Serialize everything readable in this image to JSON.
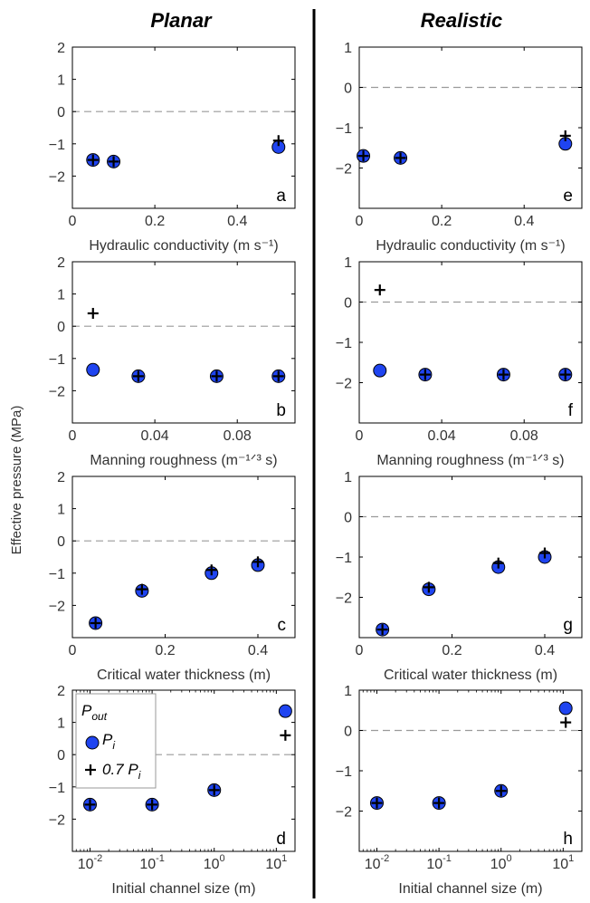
{
  "figure": {
    "column_titles": [
      "Planar",
      "Realistic"
    ],
    "y_axis_label": "Effective pressure (MPa)",
    "colors": {
      "marker_fill": "#1f44f0",
      "marker_edge": "#000000",
      "zero_line": "#9a9a9a",
      "divider": "#000000"
    }
  },
  "legend": {
    "title": "P_out",
    "entries": [
      {
        "symbol": "circle",
        "text": "P_i"
      },
      {
        "symbol": "plus",
        "text": "0.7 P_i"
      }
    ]
  },
  "chart_data": [
    {
      "label": "a",
      "type": "scatter",
      "xlabel": "Hydraulic conductivity (m s⁻¹)",
      "xlim": [
        0,
        0.54
      ],
      "ylim": [
        -3,
        2
      ],
      "xscale": "linear",
      "xticks": [
        0,
        0.2,
        0.4
      ],
      "xticklabels": [
        "0",
        "0.2",
        "0.4"
      ],
      "yticks": [
        2,
        1,
        0,
        -1,
        -2
      ],
      "yticklabels": [
        "2",
        "1",
        "0",
        "−1",
        "−2"
      ],
      "zero_line": true,
      "series": [
        {
          "marker": "circle",
          "x": [
            0.05,
            0.1,
            0.5
          ],
          "y": [
            -1.5,
            -1.55,
            -1.1
          ]
        },
        {
          "marker": "plus",
          "x": [
            0.05,
            0.1,
            0.5
          ],
          "y": [
            -1.5,
            -1.55,
            -0.9
          ]
        }
      ]
    },
    {
      "label": "e",
      "type": "scatter",
      "xlabel": "Hydraulic conductivity (m s⁻¹)",
      "xlim": [
        0,
        0.54
      ],
      "ylim": [
        -3,
        1
      ],
      "xscale": "linear",
      "xticks": [
        0,
        0.2,
        0.4
      ],
      "xticklabels": [
        "0",
        "0.2",
        "0.4"
      ],
      "yticks": [
        1,
        0,
        -1,
        -2
      ],
      "yticklabels": [
        "1",
        "0",
        "−1",
        "−2"
      ],
      "zero_line": true,
      "series": [
        {
          "marker": "circle",
          "x": [
            0.01,
            0.1,
            0.5
          ],
          "y": [
            -1.7,
            -1.75,
            -1.4
          ]
        },
        {
          "marker": "plus",
          "x": [
            0.01,
            0.1,
            0.5
          ],
          "y": [
            -1.7,
            -1.75,
            -1.2
          ]
        }
      ]
    },
    {
      "label": "b",
      "type": "scatter",
      "xlabel": "Manning roughness (m⁻¹ᐟ³ s)",
      "xlim": [
        0,
        0.108
      ],
      "ylim": [
        -3,
        2
      ],
      "xscale": "linear",
      "xticks": [
        0,
        0.04,
        0.08
      ],
      "xticklabels": [
        "0",
        "0.04",
        "0.08"
      ],
      "yticks": [
        2,
        1,
        0,
        -1,
        -2
      ],
      "yticklabels": [
        "2",
        "1",
        "0",
        "−1",
        "−2"
      ],
      "zero_line": true,
      "series": [
        {
          "marker": "circle",
          "x": [
            0.01,
            0.032,
            0.07,
            0.1
          ],
          "y": [
            -1.35,
            -1.55,
            -1.55,
            -1.55
          ]
        },
        {
          "marker": "plus",
          "x": [
            0.01,
            0.032,
            0.07,
            0.1
          ],
          "y": [
            0.4,
            -1.55,
            -1.55,
            -1.55
          ]
        }
      ]
    },
    {
      "label": "f",
      "type": "scatter",
      "xlabel": "Manning roughness (m⁻¹ᐟ³ s)",
      "xlim": [
        0,
        0.108
      ],
      "ylim": [
        -3,
        1
      ],
      "xscale": "linear",
      "xticks": [
        0,
        0.04,
        0.08
      ],
      "xticklabels": [
        "0",
        "0.04",
        "0.08"
      ],
      "yticks": [
        1,
        0,
        -1,
        -2
      ],
      "yticklabels": [
        "1",
        "0",
        "−1",
        "−2"
      ],
      "zero_line": true,
      "series": [
        {
          "marker": "circle",
          "x": [
            0.01,
            0.032,
            0.07,
            0.1
          ],
          "y": [
            -1.7,
            -1.8,
            -1.8,
            -1.8
          ]
        },
        {
          "marker": "plus",
          "x": [
            0.01,
            0.032,
            0.07,
            0.1
          ],
          "y": [
            0.3,
            -1.8,
            -1.8,
            -1.8
          ]
        }
      ]
    },
    {
      "label": "c",
      "type": "scatter",
      "xlabel": "Critical water thickness (m)",
      "xlim": [
        0,
        0.48
      ],
      "ylim": [
        -3,
        2
      ],
      "xscale": "linear",
      "xticks": [
        0,
        0.2,
        0.4
      ],
      "xticklabels": [
        "0",
        "0.2",
        "0.4"
      ],
      "yticks": [
        2,
        1,
        0,
        -1,
        -2
      ],
      "yticklabels": [
        "2",
        "1",
        "0",
        "−1",
        "−2"
      ],
      "zero_line": true,
      "series": [
        {
          "marker": "circle",
          "x": [
            0.05,
            0.15,
            0.3,
            0.4
          ],
          "y": [
            -2.55,
            -1.55,
            -1.0,
            -0.75
          ]
        },
        {
          "marker": "plus",
          "x": [
            0.05,
            0.15,
            0.3,
            0.4
          ],
          "y": [
            -2.55,
            -1.5,
            -0.9,
            -0.65
          ]
        }
      ]
    },
    {
      "label": "g",
      "type": "scatter",
      "xlabel": "Critical water thickness (m)",
      "xlim": [
        0,
        0.48
      ],
      "ylim": [
        -3,
        1
      ],
      "xscale": "linear",
      "xticks": [
        0,
        0.2,
        0.4
      ],
      "xticklabels": [
        "0",
        "0.2",
        "0.4"
      ],
      "yticks": [
        1,
        0,
        -1,
        -2
      ],
      "yticklabels": [
        "1",
        "0",
        "−1",
        "−2"
      ],
      "zero_line": true,
      "series": [
        {
          "marker": "circle",
          "x": [
            0.05,
            0.15,
            0.3,
            0.4
          ],
          "y": [
            -2.8,
            -1.8,
            -1.25,
            -1.0
          ]
        },
        {
          "marker": "plus",
          "x": [
            0.05,
            0.15,
            0.3,
            0.4
          ],
          "y": [
            -2.8,
            -1.75,
            -1.15,
            -0.9
          ]
        }
      ]
    },
    {
      "label": "d",
      "type": "scatter",
      "xlabel": "Initial channel size (m)",
      "xlim": [
        0.0052,
        20
      ],
      "ylim": [
        -3,
        2
      ],
      "xscale": "log",
      "xticks": [
        0.01,
        0.1,
        1,
        10
      ],
      "xticklabels": [
        "10",
        "10",
        "10",
        "10"
      ],
      "xtickexponents": [
        "-2",
        "-1",
        "0",
        "1"
      ],
      "yticks": [
        2,
        1,
        0,
        -1,
        -2
      ],
      "yticklabels": [
        "2",
        "1",
        "0",
        "−1",
        "−2"
      ],
      "zero_line": true,
      "legend": true,
      "series": [
        {
          "marker": "circle",
          "x": [
            0.01,
            0.1,
            1,
            14
          ],
          "y": [
            -1.55,
            -1.55,
            -1.1,
            1.35
          ]
        },
        {
          "marker": "plus",
          "x": [
            0.01,
            0.1,
            1,
            14
          ],
          "y": [
            -1.55,
            -1.55,
            -1.1,
            0.6
          ]
        }
      ]
    },
    {
      "label": "h",
      "type": "scatter",
      "xlabel": "Initial channel size (m)",
      "xlim": [
        0.0052,
        20
      ],
      "ylim": [
        -3,
        1
      ],
      "xscale": "log",
      "xticks": [
        0.01,
        0.1,
        1,
        10
      ],
      "xticklabels": [
        "10",
        "10",
        "10",
        "10"
      ],
      "xtickexponents": [
        "-2",
        "-1",
        "0",
        "1"
      ],
      "yticks": [
        1,
        0,
        -1,
        -2
      ],
      "yticklabels": [
        "1",
        "0",
        "−1",
        "−2"
      ],
      "zero_line": true,
      "series": [
        {
          "marker": "circle",
          "x": [
            0.01,
            0.1,
            1,
            11
          ],
          "y": [
            -1.8,
            -1.8,
            -1.5,
            0.55
          ]
        },
        {
          "marker": "plus",
          "x": [
            0.01,
            0.1,
            1,
            11
          ],
          "y": [
            -1.8,
            -1.8,
            -1.5,
            0.2
          ]
        }
      ]
    }
  ]
}
